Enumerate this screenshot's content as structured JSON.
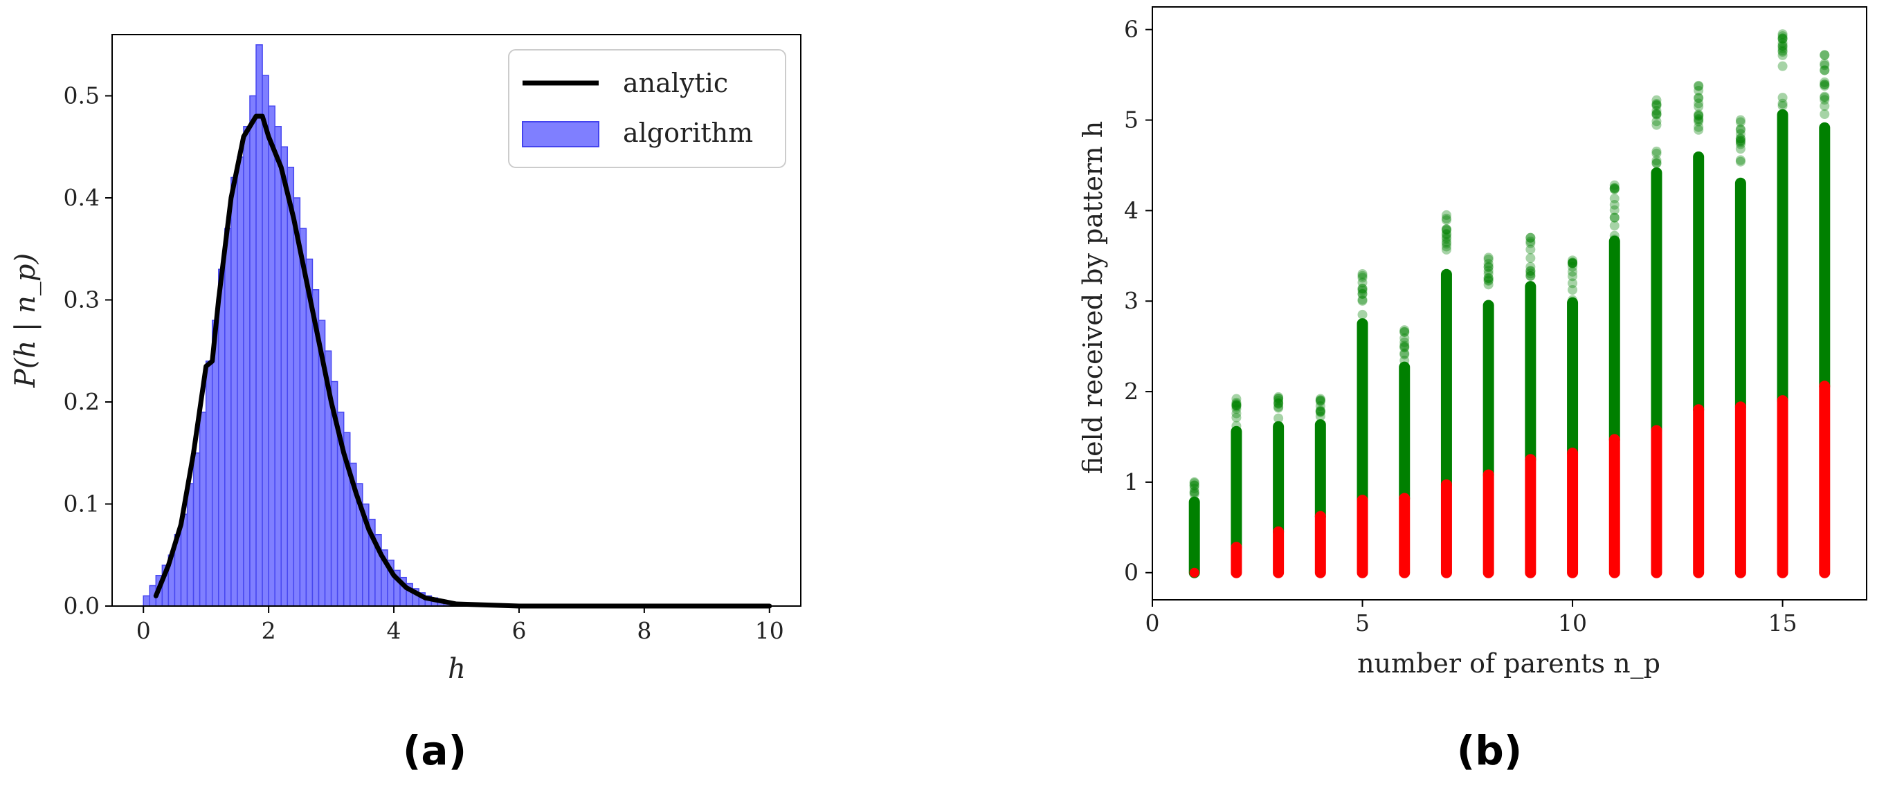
{
  "chart_data": [
    {
      "type": "histogram",
      "panel_label": "(a)",
      "xlabel": "h",
      "ylabel": "P(h | n_p)",
      "xlim": [
        -0.5,
        10.5
      ],
      "ylim": [
        0,
        0.56
      ],
      "xticks": [
        0,
        2,
        4,
        6,
        8,
        10
      ],
      "yticks": [
        0.0,
        0.1,
        0.2,
        0.3,
        0.4,
        0.5
      ],
      "bin_width": 0.1,
      "legend": {
        "position": "top-right",
        "entries": [
          "analytic",
          "algorithm"
        ]
      },
      "colors": {
        "histogram": "#5555ff",
        "histogram_edge": "#3333ee",
        "analytic": "#000000"
      },
      "histogram_bins": [
        {
          "x": 0.0,
          "y": 0.01
        },
        {
          "x": 0.1,
          "y": 0.02
        },
        {
          "x": 0.2,
          "y": 0.03
        },
        {
          "x": 0.3,
          "y": 0.04
        },
        {
          "x": 0.4,
          "y": 0.05
        },
        {
          "x": 0.5,
          "y": 0.07
        },
        {
          "x": 0.6,
          "y": 0.09
        },
        {
          "x": 0.7,
          "y": 0.12
        },
        {
          "x": 0.8,
          "y": 0.15
        },
        {
          "x": 0.9,
          "y": 0.19
        },
        {
          "x": 1.0,
          "y": 0.24
        },
        {
          "x": 1.1,
          "y": 0.28
        },
        {
          "x": 1.2,
          "y": 0.33
        },
        {
          "x": 1.3,
          "y": 0.37
        },
        {
          "x": 1.4,
          "y": 0.42
        },
        {
          "x": 1.5,
          "y": 0.44
        },
        {
          "x": 1.6,
          "y": 0.47
        },
        {
          "x": 1.7,
          "y": 0.5
        },
        {
          "x": 1.8,
          "y": 0.55
        },
        {
          "x": 1.9,
          "y": 0.52
        },
        {
          "x": 2.0,
          "y": 0.49
        },
        {
          "x": 2.1,
          "y": 0.47
        },
        {
          "x": 2.2,
          "y": 0.45
        },
        {
          "x": 2.3,
          "y": 0.43
        },
        {
          "x": 2.4,
          "y": 0.4
        },
        {
          "x": 2.5,
          "y": 0.37
        },
        {
          "x": 2.6,
          "y": 0.34
        },
        {
          "x": 2.7,
          "y": 0.31
        },
        {
          "x": 2.8,
          "y": 0.28
        },
        {
          "x": 2.9,
          "y": 0.25
        },
        {
          "x": 3.0,
          "y": 0.22
        },
        {
          "x": 3.1,
          "y": 0.19
        },
        {
          "x": 3.2,
          "y": 0.17
        },
        {
          "x": 3.3,
          "y": 0.14
        },
        {
          "x": 3.4,
          "y": 0.12
        },
        {
          "x": 3.5,
          "y": 0.1
        },
        {
          "x": 3.6,
          "y": 0.085
        },
        {
          "x": 3.7,
          "y": 0.07
        },
        {
          "x": 3.8,
          "y": 0.055
        },
        {
          "x": 3.9,
          "y": 0.045
        },
        {
          "x": 4.0,
          "y": 0.035
        },
        {
          "x": 4.1,
          "y": 0.028
        },
        {
          "x": 4.2,
          "y": 0.022
        },
        {
          "x": 4.3,
          "y": 0.017
        },
        {
          "x": 4.4,
          "y": 0.013
        },
        {
          "x": 4.5,
          "y": 0.01
        },
        {
          "x": 4.6,
          "y": 0.008
        },
        {
          "x": 4.7,
          "y": 0.006
        },
        {
          "x": 4.8,
          "y": 0.004
        },
        {
          "x": 4.9,
          "y": 0.003
        },
        {
          "x": 5.0,
          "y": 0.002
        },
        {
          "x": 5.1,
          "y": 0.0015
        },
        {
          "x": 5.2,
          "y": 0.001
        },
        {
          "x": 5.3,
          "y": 0.0008
        },
        {
          "x": 5.4,
          "y": 0.0005
        }
      ],
      "analytic_curve": [
        {
          "x": 0.2,
          "y": 0.01
        },
        {
          "x": 0.4,
          "y": 0.04
        },
        {
          "x": 0.6,
          "y": 0.08
        },
        {
          "x": 0.8,
          "y": 0.15
        },
        {
          "x": 1.0,
          "y": 0.235
        },
        {
          "x": 1.1,
          "y": 0.24
        },
        {
          "x": 1.2,
          "y": 0.3
        },
        {
          "x": 1.4,
          "y": 0.4
        },
        {
          "x": 1.6,
          "y": 0.46
        },
        {
          "x": 1.8,
          "y": 0.48
        },
        {
          "x": 1.9,
          "y": 0.48
        },
        {
          "x": 2.0,
          "y": 0.46
        },
        {
          "x": 2.2,
          "y": 0.43
        },
        {
          "x": 2.4,
          "y": 0.38
        },
        {
          "x": 2.6,
          "y": 0.32
        },
        {
          "x": 2.8,
          "y": 0.26
        },
        {
          "x": 3.0,
          "y": 0.2
        },
        {
          "x": 3.2,
          "y": 0.15
        },
        {
          "x": 3.4,
          "y": 0.11
        },
        {
          "x": 3.6,
          "y": 0.075
        },
        {
          "x": 3.8,
          "y": 0.05
        },
        {
          "x": 4.0,
          "y": 0.03
        },
        {
          "x": 4.2,
          "y": 0.018
        },
        {
          "x": 4.5,
          "y": 0.008
        },
        {
          "x": 5.0,
          "y": 0.002
        },
        {
          "x": 6.0,
          "y": 0.0
        },
        {
          "x": 8.0,
          "y": 0.0
        },
        {
          "x": 10.0,
          "y": 0.0
        }
      ]
    },
    {
      "type": "scatter",
      "panel_label": "(b)",
      "xlabel": "number of parents n_p",
      "ylabel": "field received by pattern h",
      "xlim": [
        0,
        17
      ],
      "ylim": [
        -0.3,
        6.25
      ],
      "xticks": [
        0,
        5,
        10,
        15
      ],
      "yticks": [
        0,
        1,
        2,
        3,
        4,
        5,
        6
      ],
      "colors": {
        "above_threshold": "#008000",
        "below_threshold": "#ff0000"
      },
      "series": [
        {
          "n_p": 1,
          "threshold": 0.0,
          "max": 1.0
        },
        {
          "n_p": 2,
          "threshold": 0.28,
          "max": 1.92
        },
        {
          "n_p": 3,
          "threshold": 0.45,
          "max": 1.94
        },
        {
          "n_p": 4,
          "threshold": 0.62,
          "max": 1.92
        },
        {
          "n_p": 5,
          "threshold": 0.8,
          "max": 3.3
        },
        {
          "n_p": 6,
          "threshold": 0.82,
          "max": 2.68
        },
        {
          "n_p": 7,
          "threshold": 0.97,
          "max": 3.95
        },
        {
          "n_p": 8,
          "threshold": 1.08,
          "max": 3.48
        },
        {
          "n_p": 9,
          "threshold": 1.25,
          "max": 3.7
        },
        {
          "n_p": 10,
          "threshold": 1.32,
          "max": 3.45
        },
        {
          "n_p": 11,
          "threshold": 1.47,
          "max": 4.28
        },
        {
          "n_p": 12,
          "threshold": 1.57,
          "max": 5.22
        },
        {
          "n_p": 13,
          "threshold": 1.8,
          "max": 5.38
        },
        {
          "n_p": 14,
          "threshold": 1.83,
          "max": 5.0
        },
        {
          "n_p": 15,
          "threshold": 1.9,
          "max": 5.95
        },
        {
          "n_p": 16,
          "threshold": 2.06,
          "max": 5.72
        }
      ]
    }
  ]
}
